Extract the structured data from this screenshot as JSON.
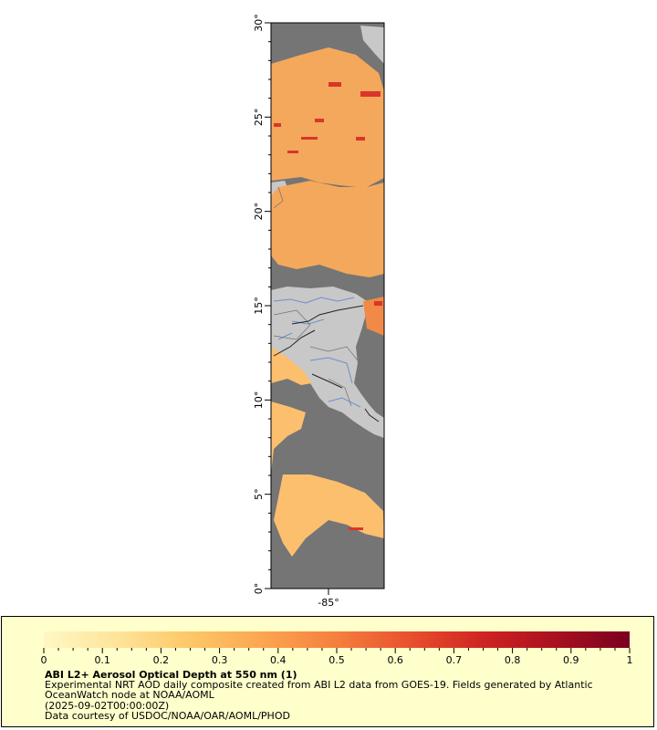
{
  "map": {
    "lat_range": [
      0,
      30
    ],
    "lon_center_label": "-85°",
    "lat_ticks": [
      {
        "value": 0,
        "label": "0°"
      },
      {
        "value": 5,
        "label": "5°"
      },
      {
        "value": 10,
        "label": "10°"
      },
      {
        "value": 15,
        "label": "15°"
      },
      {
        "value": 20,
        "label": "20°"
      },
      {
        "value": 25,
        "label": "25°"
      },
      {
        "value": 30,
        "label": "30°"
      }
    ],
    "colors": {
      "ocean_nodata": "#757575",
      "land": "#c8c8c8",
      "border": "#222222",
      "river": "#6a8fd0",
      "state_lines": "#707070"
    }
  },
  "legend": {
    "title": "ABI L2+ Aerosol Optical Depth at 550 nm (1)",
    "description": "Experimental NRT AOD daily composite created from ABI L2 data from GOES-19. Fields generated by Atlantic OceanWatch node at NOAA/AOML",
    "date": "(2025-09-02T00:00:00Z)",
    "credit": "Data courtesy of USDOC/NOAA/OAR/AOML/PHOD",
    "scale_min": 0,
    "scale_max": 1,
    "scale_labels": [
      "0",
      "0.1",
      "0.2",
      "0.3",
      "0.4",
      "0.5",
      "0.6",
      "0.7",
      "0.8",
      "0.9",
      "1"
    ],
    "color_stops": [
      "#fff7c4",
      "#ffe49a",
      "#fdc766",
      "#fca550",
      "#f57f3d",
      "#e8502e",
      "#cf2422",
      "#a8111f",
      "#7a0020"
    ]
  }
}
